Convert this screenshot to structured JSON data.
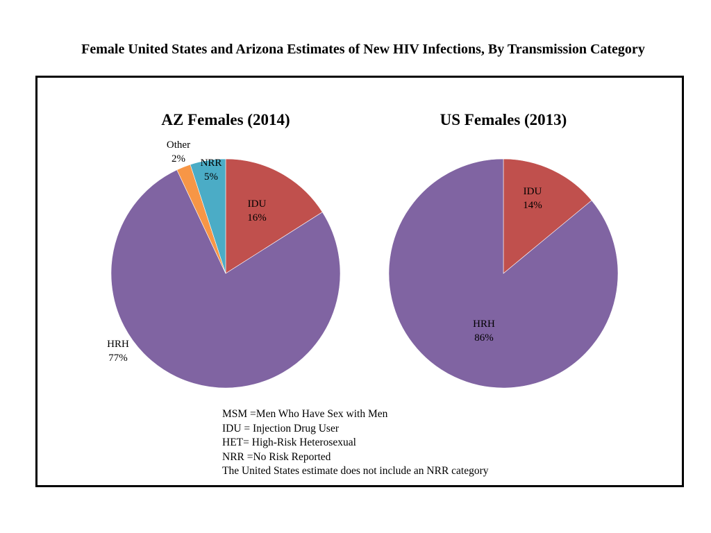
{
  "page": {
    "title": "Female United States and Arizona Estimates of New HIV Infections, By Transmission Category"
  },
  "colors": {
    "IDU": "#c0504d",
    "HRH": "#8064a2",
    "Other": "#f79646",
    "NRR": "#4bacc6"
  },
  "chart_data": [
    {
      "type": "pie",
      "title": "AZ Females (2014)",
      "categories": [
        "IDU",
        "HRH",
        "Other",
        "NRR"
      ],
      "values": [
        16,
        77,
        2,
        5
      ],
      "data_labels": [
        "16%",
        "77%",
        "2%",
        "5%"
      ],
      "start_angle": "12 o'clock, clockwise"
    },
    {
      "type": "pie",
      "title": "US Females (2013)",
      "categories": [
        "IDU",
        "HRH"
      ],
      "values": [
        14,
        86
      ],
      "data_labels": [
        "14%",
        "86%"
      ],
      "start_angle": "12 o'clock, clockwise"
    }
  ],
  "notes": [
    "MSM =Men Who Have Sex with Men",
    "IDU = Injection Drug User",
    "HET= High-Risk Heterosexual",
    "NRR =No Risk Reported",
    "The United States estimate does not include an NRR category"
  ]
}
